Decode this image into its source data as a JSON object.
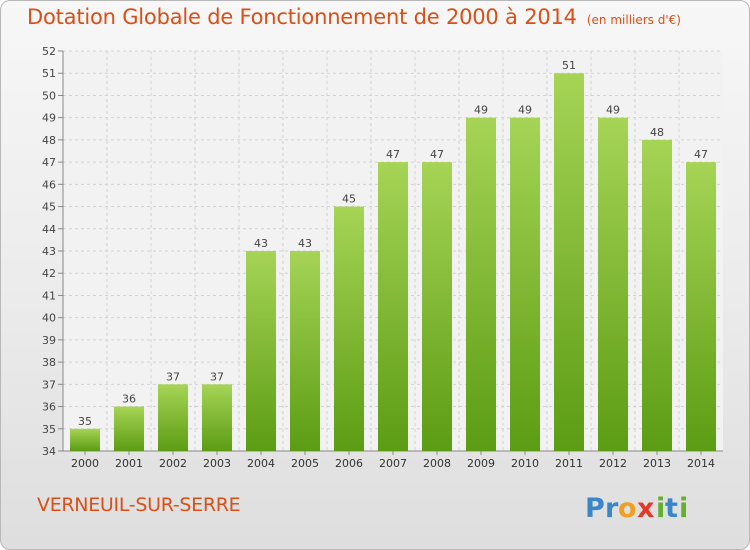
{
  "header": {
    "title": "Dotation Globale de Fonctionnement de 2000 à 2014",
    "unit": "(en milliers d'€)"
  },
  "footer": {
    "commune": "VERNEUIL-SUR-SERRE",
    "logo_text": "Proxiti"
  },
  "colors": {
    "accent": "#d94f16",
    "bar_top": "#a6d456",
    "bar_bottom": "#5c9c14"
  },
  "chart_data": {
    "type": "bar",
    "title": "Dotation Globale de Fonctionnement de 2000 à 2014",
    "subtitle": "(en milliers d'€)",
    "xlabel": "",
    "ylabel": "",
    "categories": [
      "2000",
      "2001",
      "2002",
      "2003",
      "2004",
      "2005",
      "2006",
      "2007",
      "2008",
      "2009",
      "2010",
      "2011",
      "2012",
      "2013",
      "2014"
    ],
    "values": [
      35,
      36,
      37,
      37,
      43,
      43,
      45,
      47,
      47,
      49,
      49,
      51,
      49,
      48,
      47
    ],
    "data_labels": [
      "35",
      "36",
      "37",
      "37",
      "43",
      "43",
      "45",
      "47",
      "47",
      "49",
      "49",
      "51",
      "49",
      "48",
      "47"
    ],
    "ylim": [
      34,
      52
    ],
    "yticks": [
      "34",
      "35",
      "36",
      "37",
      "38",
      "39",
      "40",
      "41",
      "42",
      "43",
      "44",
      "45",
      "46",
      "47",
      "48",
      "49",
      "50",
      "51",
      "52"
    ],
    "grid": true,
    "legend": "none"
  }
}
